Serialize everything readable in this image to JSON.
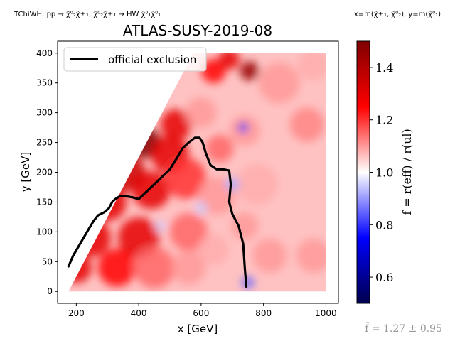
{
  "header": {
    "process": "TChiWH: pp → χ̃⁰₂χ̃±₁, χ̃⁰₂χ̃±₁ → HW χ̃⁰₁χ̃⁰₁",
    "axes_def": "x=m(χ̃±₁, χ̃⁰₂), y=m(χ̃⁰₁)"
  },
  "footer": {
    "mean": "f̄ = 1.27 ± 0.95"
  },
  "chart_data": {
    "type": "heatmap",
    "title": "ATLAS-SUSY-2019-08",
    "xlabel": "x [GeV]",
    "ylabel": "y [GeV]",
    "xlim": [
      140,
      1040
    ],
    "ylim": [
      -20,
      420
    ],
    "xticks": [
      200,
      400,
      600,
      800,
      1000
    ],
    "yticks": [
      0,
      50,
      100,
      150,
      200,
      250,
      300,
      350,
      400
    ],
    "grid": false,
    "legend": {
      "position": "top-left",
      "entries": [
        "official exclusion"
      ]
    },
    "colorbar": {
      "label": "f = r(eff) / r(ul)",
      "range": [
        0.5,
        1.5
      ],
      "ticks": [
        0.6,
        0.8,
        1.0,
        1.2,
        1.4
      ],
      "colormap": "seismic",
      "colors": [
        "#00004c",
        "#0000ff",
        "#ffffff",
        "#ff0000",
        "#7f0000"
      ]
    },
    "region": {
      "x_range": [
        175,
        1000
      ],
      "y_range": [
        0,
        400
      ],
      "diagonal": "y < x - 175"
    },
    "heat_features": [
      {
        "x": 210,
        "y": 200,
        "value": 1.5,
        "radius": 55
      },
      {
        "x": 280,
        "y": 260,
        "value": 1.5,
        "radius": 50
      },
      {
        "x": 330,
        "y": 320,
        "value": 1.5,
        "radius": 45
      },
      {
        "x": 380,
        "y": 355,
        "value": 1.5,
        "radius": 45
      },
      {
        "x": 420,
        "y": 250,
        "value": 1.5,
        "radius": 45
      },
      {
        "x": 360,
        "y": 200,
        "value": 1.35,
        "radius": 55
      },
      {
        "x": 300,
        "y": 150,
        "value": 1.3,
        "radius": 55
      },
      {
        "x": 250,
        "y": 90,
        "value": 1.3,
        "radius": 55
      },
      {
        "x": 200,
        "y": 40,
        "value": 1.3,
        "radius": 45
      },
      {
        "x": 440,
        "y": 170,
        "value": 1.3,
        "radius": 55
      },
      {
        "x": 500,
        "y": 230,
        "value": 1.3,
        "radius": 55
      },
      {
        "x": 550,
        "y": 190,
        "value": 1.2,
        "radius": 60
      },
      {
        "x": 520,
        "y": 280,
        "value": 1.3,
        "radius": 45
      },
      {
        "x": 400,
        "y": 90,
        "value": 1.3,
        "radius": 60
      },
      {
        "x": 330,
        "y": 40,
        "value": 1.25,
        "radius": 55
      },
      {
        "x": 450,
        "y": 40,
        "value": 1.15,
        "radius": 60
      },
      {
        "x": 560,
        "y": 100,
        "value": 1.15,
        "radius": 55
      },
      {
        "x": 650,
        "y": 160,
        "value": 1.1,
        "radius": 55
      },
      {
        "x": 660,
        "y": 240,
        "value": 1.15,
        "radius": 40
      },
      {
        "x": 560,
        "y": 40,
        "value": 1.1,
        "radius": 50
      },
      {
        "x": 640,
        "y": 70,
        "value": 1.08,
        "radius": 45
      },
      {
        "x": 600,
        "y": 300,
        "value": 1.1,
        "radius": 45
      },
      {
        "x": 640,
        "y": 370,
        "value": 1.25,
        "radius": 35
      },
      {
        "x": 690,
        "y": 390,
        "value": 1.3,
        "radius": 30
      },
      {
        "x": 755,
        "y": 370,
        "value": 1.45,
        "radius": 28
      },
      {
        "x": 740,
        "y": 270,
        "value": 1.1,
        "radius": 45
      },
      {
        "x": 850,
        "y": 350,
        "value": 1.1,
        "radius": 60
      },
      {
        "x": 940,
        "y": 280,
        "value": 1.12,
        "radius": 50
      },
      {
        "x": 960,
        "y": 380,
        "value": 1.08,
        "radius": 45
      },
      {
        "x": 780,
        "y": 180,
        "value": 1.08,
        "radius": 60
      },
      {
        "x": 900,
        "y": 150,
        "value": 1.06,
        "radius": 60
      },
      {
        "x": 820,
        "y": 60,
        "value": 1.1,
        "radius": 50
      },
      {
        "x": 960,
        "y": 60,
        "value": 1.1,
        "radius": 50
      },
      {
        "x": 740,
        "y": 110,
        "value": 1.1,
        "radius": 40
      },
      {
        "x": 735,
        "y": 275,
        "value": 0.78,
        "radius": 14
      },
      {
        "x": 750,
        "y": 15,
        "value": 0.85,
        "radius": 18
      },
      {
        "x": 700,
        "y": 180,
        "value": 0.92,
        "radius": 20
      },
      {
        "x": 600,
        "y": 140,
        "value": 0.95,
        "radius": 18
      },
      {
        "x": 470,
        "y": 110,
        "value": 0.95,
        "radius": 15
      }
    ],
    "series": [
      {
        "name": "official exclusion",
        "x": [
          175,
          190,
          210,
          240,
          255,
          270,
          290,
          305,
          315,
          325,
          340,
          355,
          380,
          400,
          430,
          470,
          500,
          520,
          540,
          560,
          580,
          595,
          605,
          615,
          630,
          650,
          670,
          690,
          695,
          690,
          700,
          720,
          735,
          740,
          745
        ],
        "y": [
          42,
          60,
          78,
          105,
          118,
          128,
          133,
          140,
          150,
          155,
          160,
          160,
          158,
          155,
          170,
          190,
          205,
          222,
          240,
          250,
          258,
          258,
          250,
          232,
          212,
          205,
          205,
          203,
          180,
          150,
          130,
          110,
          80,
          40,
          8
        ]
      }
    ]
  }
}
